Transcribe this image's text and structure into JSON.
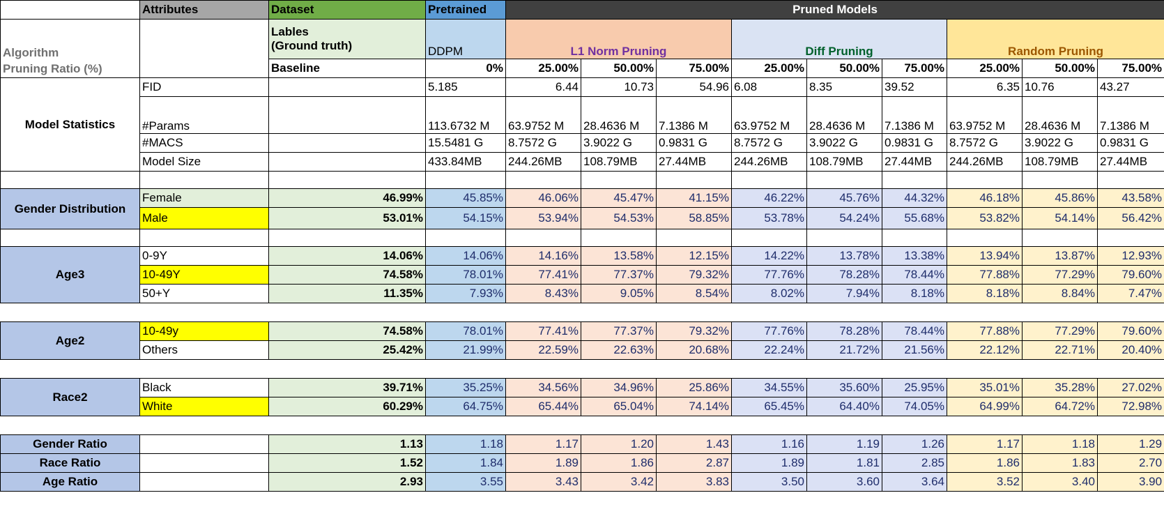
{
  "header": {
    "attributes": "Attributes",
    "dataset": "Dataset",
    "pretrained": "Pretrained",
    "pruned_models": "Pruned Models"
  },
  "subheader": {
    "algorithm": "Algorithm",
    "pruning_ratio": "Pruning Ratio (%)",
    "labels_line1": "Lables",
    "labels_line2": "(Ground truth)",
    "baseline": "Baseline",
    "ddpm": "DDPM",
    "pretrained_ratio": "0%",
    "l1": "L1 Norm Pruning",
    "diff": "Diff Pruning",
    "random": "Random Pruning",
    "ratios": [
      "25.00%",
      "50.00%",
      "75.00%",
      "25.00%",
      "50.00%",
      "75.00%",
      "25.00%",
      "50.00%",
      "75.00%"
    ]
  },
  "model_stats": {
    "group": "Model Statistics",
    "fid": {
      "label": "FID",
      "values": [
        "5.185",
        "6.44",
        "10.73",
        "54.96",
        "6.08",
        "8.35",
        "39.52",
        "6.35",
        "10.76",
        "43.27"
      ]
    },
    "params": {
      "label": "#Params",
      "values": [
        "113.6732 M",
        "63.9752 M",
        "28.4636 M",
        "7.1386 M",
        "63.9752 M",
        "28.4636 M",
        "7.1386 M",
        "63.9752 M",
        "28.4636 M",
        "7.1386 M"
      ]
    },
    "macs": {
      "label": "#MACS",
      "values": [
        "15.5481 G",
        "8.7572 G",
        "3.9022 G",
        "0.9831 G",
        "8.7572 G",
        "3.9022 G",
        "0.9831 G",
        "8.7572 G",
        "3.9022 G",
        "0.9831 G"
      ]
    },
    "size": {
      "label": "Model Size",
      "values": [
        "433.84MB",
        "244.26MB",
        "108.79MB",
        "27.44MB",
        "244.26MB",
        "108.79MB",
        "27.44MB",
        "244.26MB",
        "108.79MB",
        "27.44MB"
      ]
    }
  },
  "gender": {
    "group": "Gender Distribution",
    "rows": [
      {
        "label": "Female",
        "baseline": "46.99%",
        "values": [
          "45.85%",
          "46.06%",
          "45.47%",
          "41.15%",
          "46.22%",
          "45.76%",
          "44.32%",
          "46.18%",
          "45.86%",
          "43.58%"
        ]
      },
      {
        "label": "Male",
        "baseline": "53.01%",
        "values": [
          "54.15%",
          "53.94%",
          "54.53%",
          "58.85%",
          "53.78%",
          "54.24%",
          "55.68%",
          "53.82%",
          "54.14%",
          "56.42%"
        ]
      }
    ]
  },
  "age3": {
    "group": "Age3",
    "rows": [
      {
        "label": "0-9Y",
        "baseline": "14.06%",
        "values": [
          "14.06%",
          "14.16%",
          "13.58%",
          "12.15%",
          "14.22%",
          "13.78%",
          "13.38%",
          "13.94%",
          "13.87%",
          "12.93%"
        ]
      },
      {
        "label": "10-49Y",
        "baseline": "74.58%",
        "values": [
          "78.01%",
          "77.41%",
          "77.37%",
          "79.32%",
          "77.76%",
          "78.28%",
          "78.44%",
          "77.88%",
          "77.29%",
          "79.60%"
        ]
      },
      {
        "label": "50+Y",
        "baseline": "11.35%",
        "values": [
          "7.93%",
          "8.43%",
          "9.05%",
          "8.54%",
          "8.02%",
          "7.94%",
          "8.18%",
          "8.18%",
          "8.84%",
          "7.47%"
        ]
      }
    ]
  },
  "age2": {
    "group": "Age2",
    "rows": [
      {
        "label": "10-49y",
        "baseline": "74.58%",
        "values": [
          "78.01%",
          "77.41%",
          "77.37%",
          "79.32%",
          "77.76%",
          "78.28%",
          "78.44%",
          "77.88%",
          "77.29%",
          "79.60%"
        ]
      },
      {
        "label": "Others",
        "baseline": "25.42%",
        "values": [
          "21.99%",
          "22.59%",
          "22.63%",
          "20.68%",
          "22.24%",
          "21.72%",
          "21.56%",
          "22.12%",
          "22.71%",
          "20.40%"
        ]
      }
    ]
  },
  "race2": {
    "group": "Race2",
    "rows": [
      {
        "label": "Black",
        "baseline": "39.71%",
        "values": [
          "35.25%",
          "34.56%",
          "34.96%",
          "25.86%",
          "34.55%",
          "35.60%",
          "25.95%",
          "35.01%",
          "35.28%",
          "27.02%"
        ]
      },
      {
        "label": "White",
        "baseline": "60.29%",
        "values": [
          "64.75%",
          "65.44%",
          "65.04%",
          "74.14%",
          "65.45%",
          "64.40%",
          "74.05%",
          "64.99%",
          "64.72%",
          "72.98%"
        ]
      }
    ]
  },
  "ratios": [
    {
      "label": "Gender Ratio",
      "baseline": "1.13",
      "values": [
        "1.18",
        "1.17",
        "1.20",
        "1.43",
        "1.16",
        "1.19",
        "1.26",
        "1.17",
        "1.18",
        "1.29"
      ]
    },
    {
      "label": "Race Ratio",
      "baseline": "1.52",
      "values": [
        "1.84",
        "1.89",
        "1.86",
        "2.87",
        "1.89",
        "1.81",
        "2.85",
        "1.86",
        "1.83",
        "2.70"
      ]
    },
    {
      "label": "Age Ratio",
      "baseline": "2.93",
      "values": [
        "3.55",
        "3.43",
        "3.42",
        "3.83",
        "3.50",
        "3.60",
        "3.64",
        "3.52",
        "3.40",
        "3.90"
      ]
    }
  ]
}
